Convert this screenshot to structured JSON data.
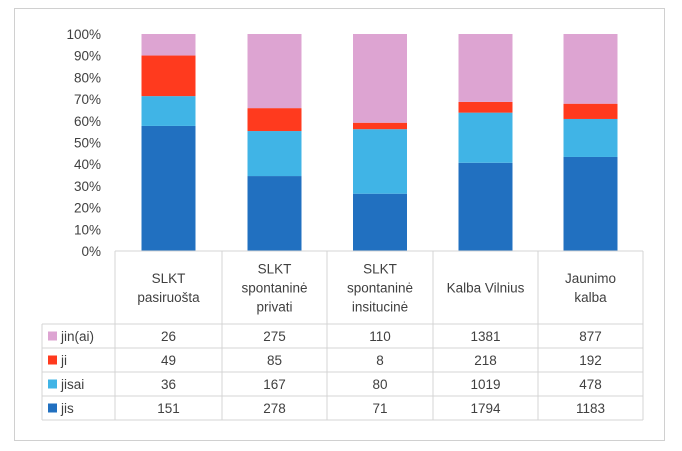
{
  "chart_data": {
    "type": "bar",
    "stacked": "percent",
    "categories": [
      [
        "SLKT",
        "pasiruošta"
      ],
      [
        "SLKT",
        "spontaninė",
        "privati"
      ],
      [
        "SLKT",
        "spontaninė",
        "insitucinė"
      ],
      [
        "Kalba Vilnius"
      ],
      [
        "Jaunimo",
        "kalba"
      ]
    ],
    "y_ticks": [
      "0%",
      "10%",
      "20%",
      "30%",
      "40%",
      "50%",
      "60%",
      "70%",
      "80%",
      "90%",
      "100%"
    ],
    "ylim": [
      0,
      100
    ],
    "grid": false,
    "legend": "data-table",
    "series": [
      {
        "name": "jis",
        "color": "#2170c0",
        "values": [
          151,
          278,
          71,
          1794,
          1183
        ]
      },
      {
        "name": "jisai",
        "color": "#40b4e6",
        "values": [
          36,
          167,
          80,
          1019,
          478
        ]
      },
      {
        "name": "ji",
        "color": "#ff3a1e",
        "values": [
          49,
          85,
          8,
          218,
          192
        ]
      },
      {
        "name": "jin(ai)",
        "color": "#dda4d2",
        "values": [
          26,
          275,
          110,
          1381,
          877
        ]
      }
    ],
    "table_row_order": [
      "jin(ai)",
      "ji",
      "jisai",
      "jis"
    ]
  }
}
